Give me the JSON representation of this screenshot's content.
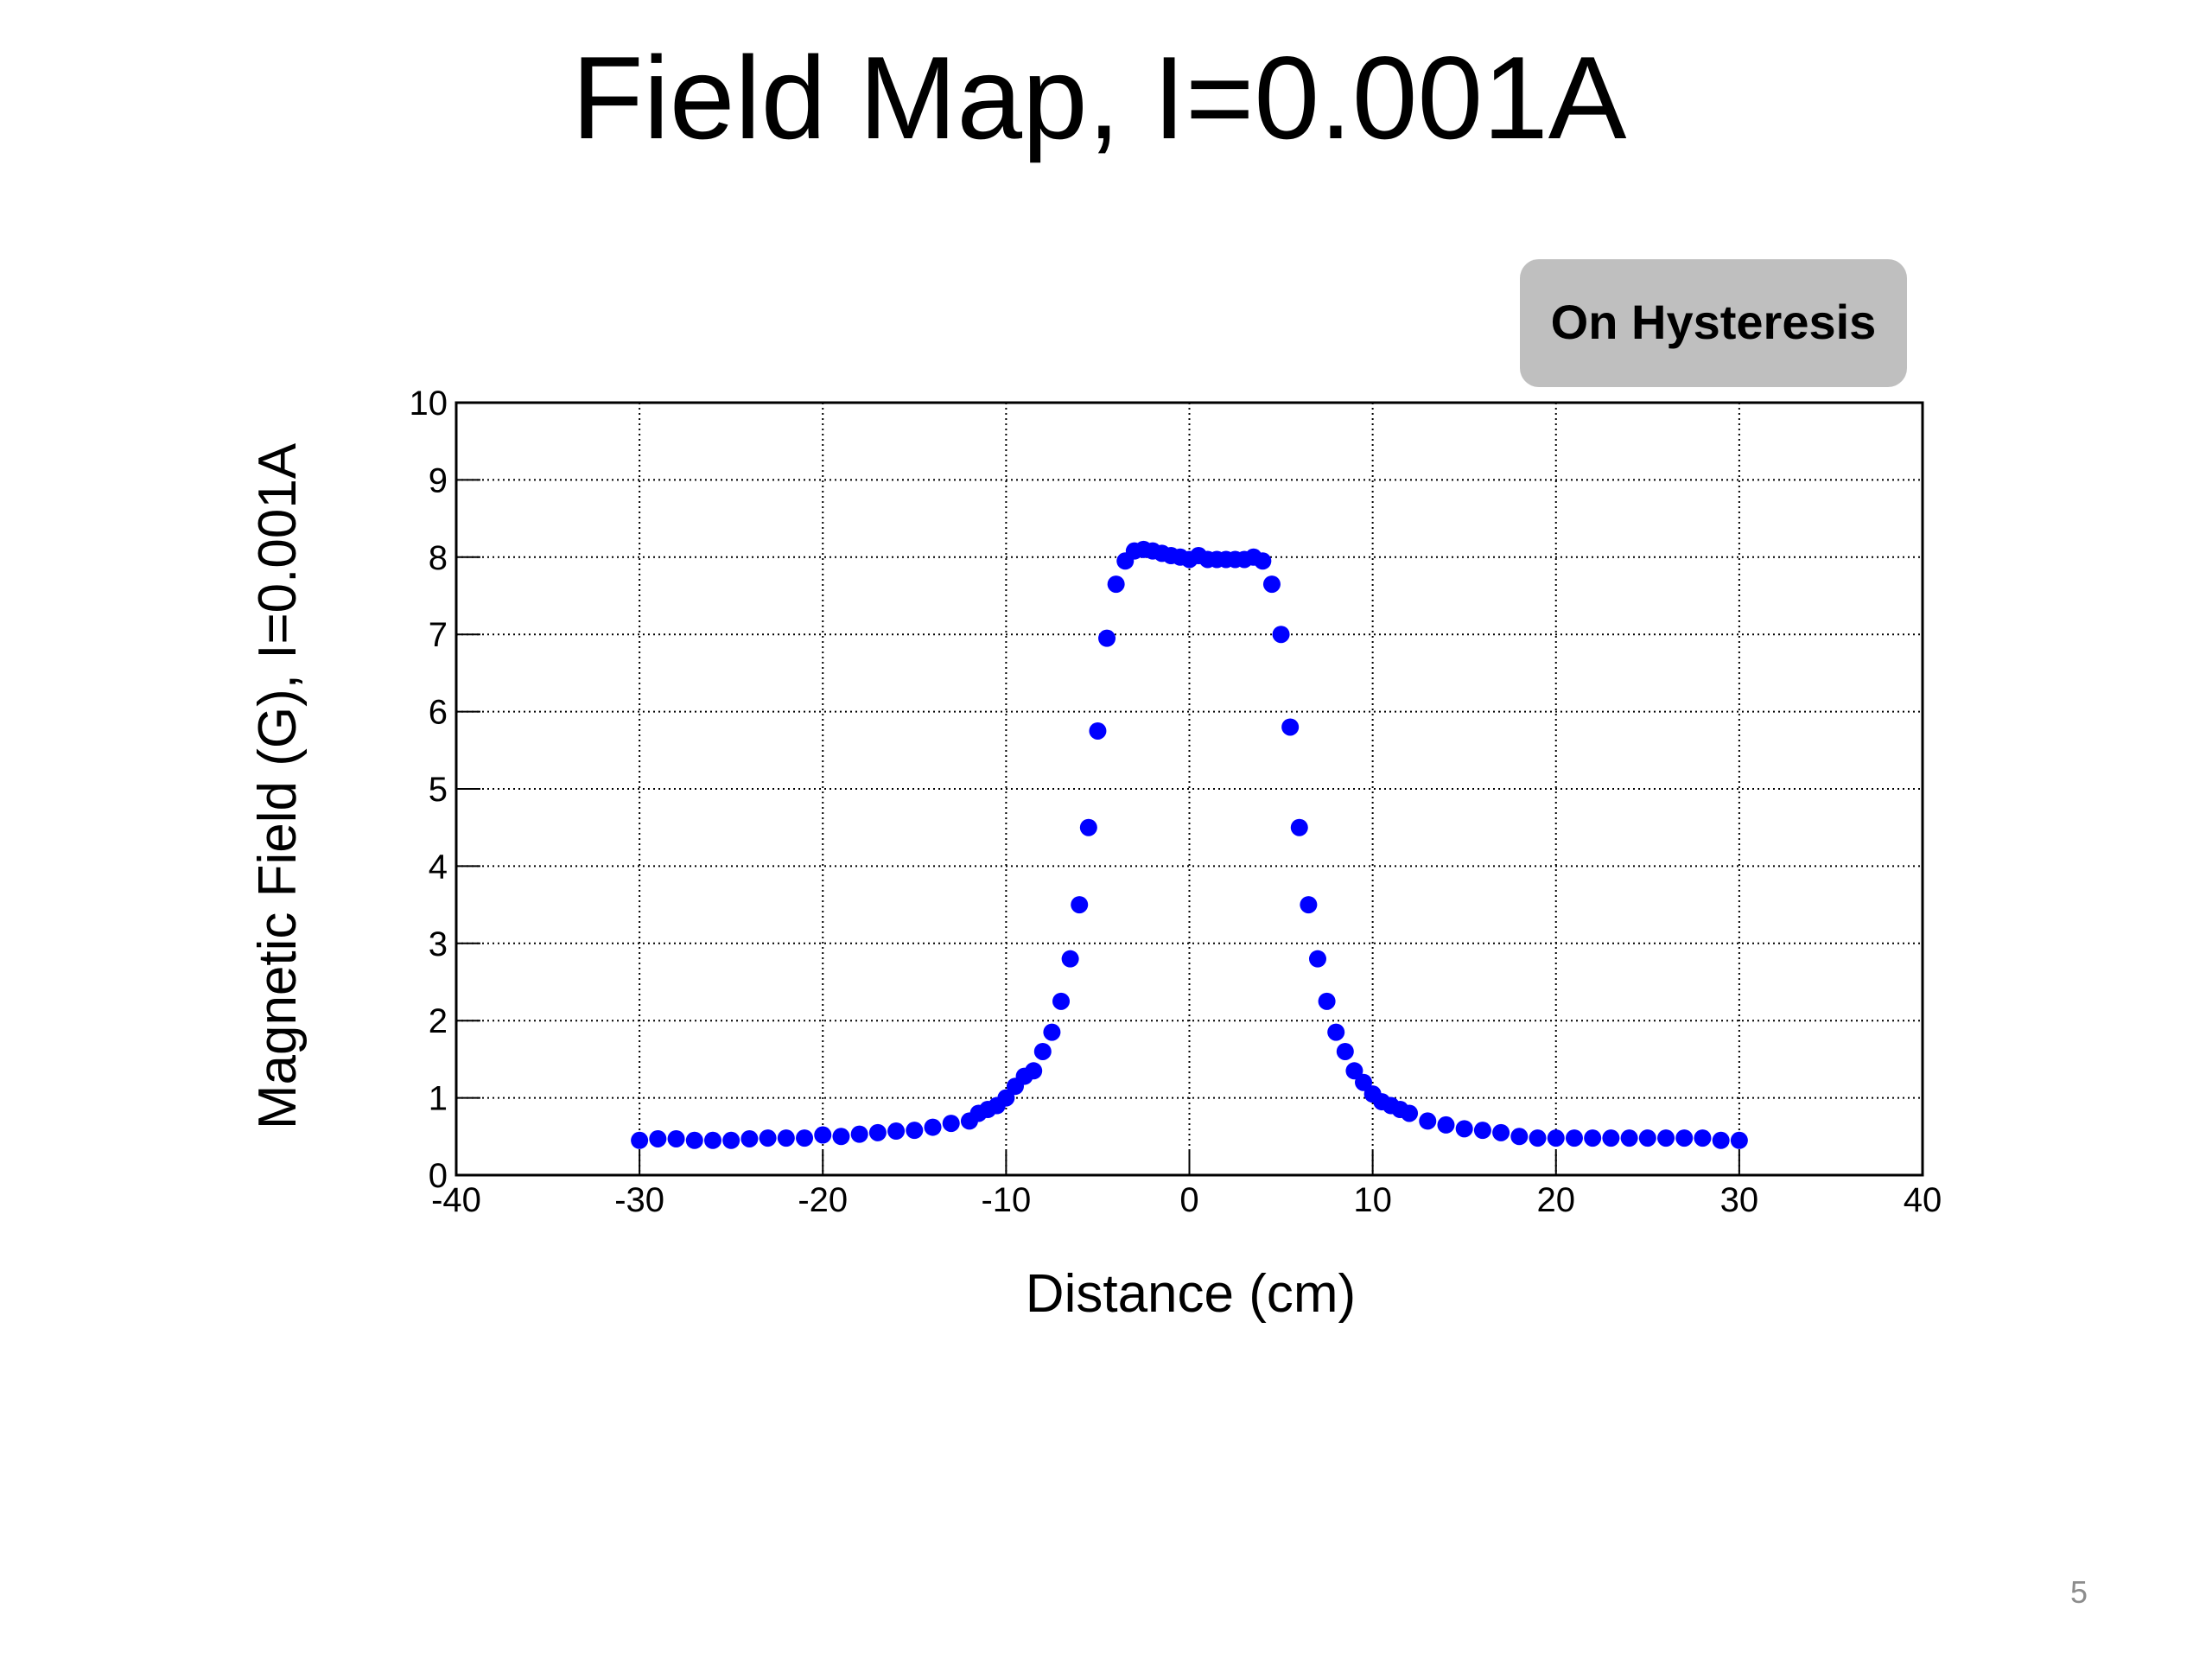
{
  "title": "Field Map, I=0.001A",
  "button": "On Hysteresis",
  "page_number": "5",
  "chart_data": {
    "type": "scatter",
    "xlabel": "Distance (cm)",
    "ylabel": "Magnetic Field (G), I=0.001A",
    "xlim": [
      -40,
      40
    ],
    "ylim": [
      0,
      10
    ],
    "xticks": [
      -40,
      -30,
      -20,
      -10,
      0,
      10,
      20,
      30,
      40
    ],
    "yticks": [
      0,
      1,
      2,
      3,
      4,
      5,
      6,
      7,
      8,
      9,
      10
    ],
    "grid": true,
    "x": [
      -30,
      -29,
      -28,
      -27,
      -26,
      -25,
      -24,
      -23,
      -22,
      -21,
      -20,
      -19,
      -18,
      -17,
      -16,
      -15,
      -14,
      -13,
      -12,
      -11.5,
      -11,
      -10.5,
      -10,
      -9.5,
      -9,
      -8.5,
      -8,
      -7.5,
      -7,
      -6.5,
      -6,
      -5.5,
      -5,
      -4.5,
      -4,
      -3.5,
      -3,
      -2.5,
      -2,
      -1.5,
      -1,
      -0.5,
      0,
      0.5,
      1,
      1.5,
      2,
      2.5,
      3,
      3.5,
      4,
      4.5,
      5,
      5.5,
      6,
      6.5,
      7,
      7.5,
      8,
      8.5,
      9,
      9.5,
      10,
      10.5,
      11,
      11.5,
      12,
      13,
      14,
      15,
      16,
      17,
      18,
      19,
      20,
      21,
      22,
      23,
      24,
      25,
      26,
      27,
      28,
      29,
      30
    ],
    "series": [
      {
        "name": "field",
        "color": "#0000ff",
        "values": [
          0.45,
          0.47,
          0.47,
          0.45,
          0.45,
          0.45,
          0.47,
          0.48,
          0.48,
          0.48,
          0.52,
          0.5,
          0.53,
          0.55,
          0.57,
          0.58,
          0.62,
          0.67,
          0.7,
          0.8,
          0.85,
          0.9,
          1.0,
          1.15,
          1.28,
          1.35,
          1.6,
          1.85,
          2.25,
          2.8,
          3.5,
          4.5,
          5.75,
          6.95,
          7.65,
          7.95,
          8.08,
          8.1,
          8.08,
          8.05,
          8.02,
          8.0,
          7.97,
          8.02,
          7.97,
          7.97,
          7.97,
          7.97,
          7.97,
          8.0,
          7.95,
          7.65,
          7.0,
          5.8,
          4.5,
          3.5,
          2.8,
          2.25,
          1.85,
          1.6,
          1.35,
          1.2,
          1.05,
          0.95,
          0.9,
          0.85,
          0.8,
          0.7,
          0.65,
          0.6,
          0.58,
          0.55,
          0.5,
          0.48,
          0.48,
          0.48,
          0.48,
          0.48,
          0.48,
          0.48,
          0.48,
          0.48,
          0.48,
          0.45,
          0.45
        ]
      }
    ]
  }
}
